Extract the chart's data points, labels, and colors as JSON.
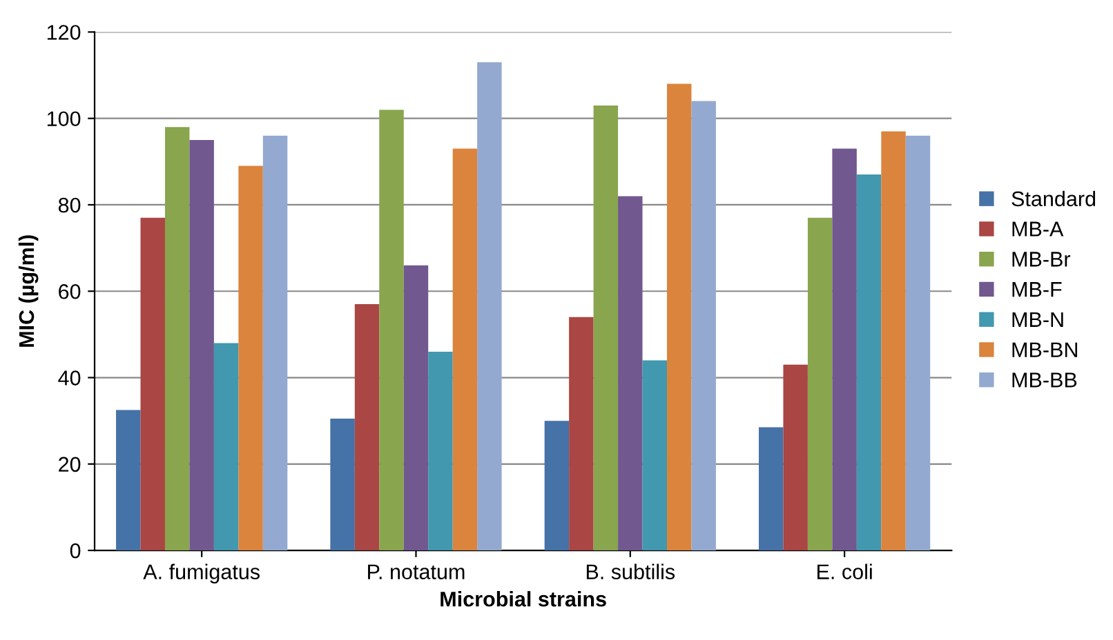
{
  "chart_data": {
    "type": "bar",
    "xlabel": "Microbial strains",
    "ylabel": "MIC (µg/ml)",
    "categories": [
      "A. fumigatus",
      "P. notatum",
      "B. subtilis",
      "E. coli"
    ],
    "series": [
      {
        "name": "Standard",
        "color": "#4572a7",
        "values": [
          32.5,
          30.5,
          30,
          28.5
        ]
      },
      {
        "name": "MB-A",
        "color": "#aa4643",
        "values": [
          77,
          57,
          54,
          43
        ]
      },
      {
        "name": "MB-Br",
        "color": "#89a54e",
        "values": [
          98,
          102,
          103,
          77
        ]
      },
      {
        "name": "MB-F",
        "color": "#71588f",
        "values": [
          95,
          66,
          82,
          93
        ]
      },
      {
        "name": "MB-N",
        "color": "#4198af",
        "values": [
          48,
          46,
          44,
          87
        ]
      },
      {
        "name": "MB-BN",
        "color": "#db843d",
        "values": [
          89,
          93,
          108,
          97
        ]
      },
      {
        "name": "MB-BB",
        "color": "#93a9cf",
        "values": [
          96,
          113,
          104,
          96
        ]
      }
    ],
    "ylim": [
      0,
      120
    ],
    "yticks": [
      0,
      20,
      40,
      60,
      80,
      100,
      120
    ],
    "grid": "y",
    "legend": "right"
  }
}
